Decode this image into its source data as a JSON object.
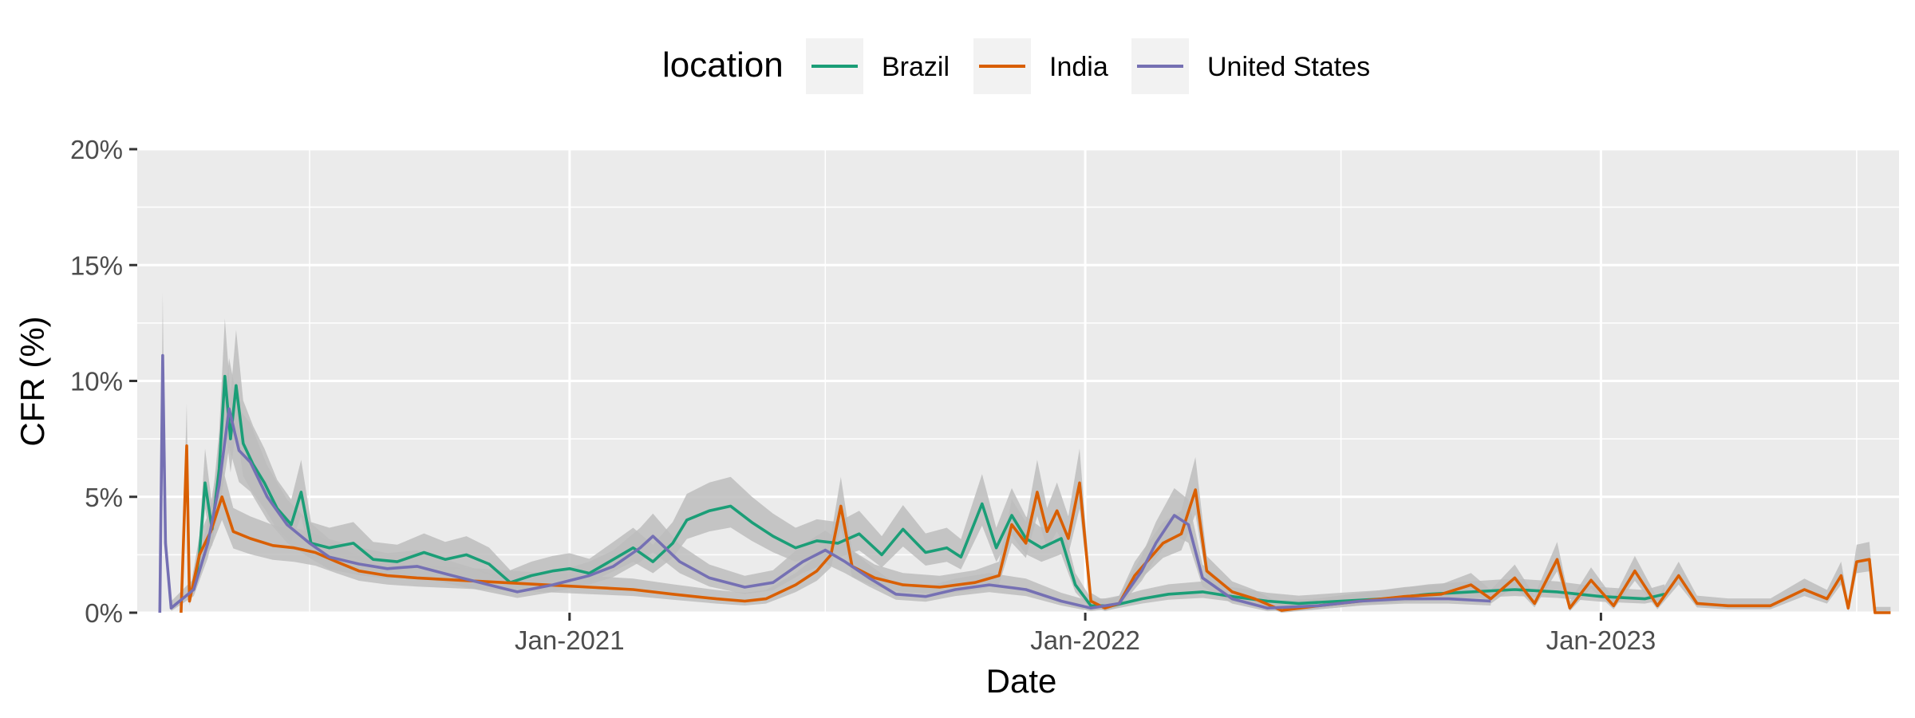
{
  "chart_data": {
    "type": "line",
    "xlabel": "Date",
    "ylabel": "CFR (%)",
    "x_range": [
      "2020-03-01",
      "2023-07-31"
    ],
    "ylim": [
      0,
      20
    ],
    "y_ticks": [
      0,
      5,
      10,
      15,
      20
    ],
    "y_tick_labels": [
      "0%",
      "5%",
      "10%",
      "15%",
      "20%"
    ],
    "x_ticks": [
      "2021-01-01",
      "2022-01-01",
      "2023-01-01"
    ],
    "x_tick_labels": [
      "Jan-2021",
      "Jan-2022",
      "Jan-2023"
    ],
    "x_minor_ticks": [
      "2020-07-01",
      "2021-07-01",
      "2022-07-01",
      "2023-07-01"
    ],
    "grid": true,
    "confidence_band": true,
    "legend": {
      "title": "location",
      "position": "top",
      "entries": [
        "Brazil",
        "India",
        "United States"
      ]
    },
    "series": [
      {
        "name": "Brazil",
        "color": "#1b9e77",
        "points": [
          [
            "2020-04-10",
            1.0
          ],
          [
            "2020-04-14",
            2.5
          ],
          [
            "2020-04-18",
            5.6
          ],
          [
            "2020-04-23",
            3.6
          ],
          [
            "2020-04-28",
            6.2
          ],
          [
            "2020-05-02",
            10.2
          ],
          [
            "2020-05-06",
            7.5
          ],
          [
            "2020-05-10",
            9.8
          ],
          [
            "2020-05-15",
            7.3
          ],
          [
            "2020-05-22",
            6.4
          ],
          [
            "2020-05-30",
            5.6
          ],
          [
            "2020-06-08",
            4.5
          ],
          [
            "2020-06-18",
            3.8
          ],
          [
            "2020-06-25",
            5.2
          ],
          [
            "2020-07-02",
            3.0
          ],
          [
            "2020-07-15",
            2.8
          ],
          [
            "2020-08-01",
            3.0
          ],
          [
            "2020-08-15",
            2.3
          ],
          [
            "2020-09-01",
            2.2
          ],
          [
            "2020-09-20",
            2.6
          ],
          [
            "2020-10-05",
            2.3
          ],
          [
            "2020-10-20",
            2.5
          ],
          [
            "2020-11-05",
            2.1
          ],
          [
            "2020-11-20",
            1.3
          ],
          [
            "2020-12-05",
            1.6
          ],
          [
            "2020-12-20",
            1.8
          ],
          [
            "2021-01-01",
            1.9
          ],
          [
            "2021-01-15",
            1.7
          ],
          [
            "2021-02-01",
            2.3
          ],
          [
            "2021-02-15",
            2.8
          ],
          [
            "2021-03-01",
            2.2
          ],
          [
            "2021-03-15",
            3.0
          ],
          [
            "2021-03-25",
            4.0
          ],
          [
            "2021-04-10",
            4.4
          ],
          [
            "2021-04-25",
            4.6
          ],
          [
            "2021-05-10",
            3.9
          ],
          [
            "2021-05-25",
            3.3
          ],
          [
            "2021-06-10",
            2.8
          ],
          [
            "2021-06-25",
            3.1
          ],
          [
            "2021-07-10",
            3.0
          ],
          [
            "2021-07-25",
            3.4
          ],
          [
            "2021-08-10",
            2.5
          ],
          [
            "2021-08-25",
            3.6
          ],
          [
            "2021-09-10",
            2.6
          ],
          [
            "2021-09-25",
            2.8
          ],
          [
            "2021-10-05",
            2.4
          ],
          [
            "2021-10-20",
            4.7
          ],
          [
            "2021-10-30",
            2.8
          ],
          [
            "2021-11-10",
            4.2
          ],
          [
            "2021-11-20",
            3.2
          ],
          [
            "2021-12-01",
            2.8
          ],
          [
            "2021-12-15",
            3.2
          ],
          [
            "2021-12-25",
            1.2
          ],
          [
            "2022-01-05",
            0.3
          ],
          [
            "2022-01-20",
            0.3
          ],
          [
            "2022-02-10",
            0.6
          ],
          [
            "2022-03-01",
            0.8
          ],
          [
            "2022-03-25",
            0.9
          ],
          [
            "2022-04-15",
            0.7
          ],
          [
            "2022-05-10",
            0.5
          ],
          [
            "2022-06-01",
            0.4
          ],
          [
            "2022-07-01",
            0.5
          ],
          [
            "2022-08-01",
            0.6
          ],
          [
            "2022-09-01",
            0.8
          ],
          [
            "2022-10-01",
            0.9
          ],
          [
            "2022-11-01",
            1.0
          ],
          [
            "2022-12-01",
            0.9
          ],
          [
            "2023-01-01",
            0.7
          ],
          [
            "2023-02-01",
            0.6
          ],
          [
            "2023-02-15",
            0.8
          ]
        ]
      },
      {
        "name": "India",
        "color": "#d95f02",
        "points": [
          [
            "2020-04-01",
            0.0
          ],
          [
            "2020-04-05",
            7.2
          ],
          [
            "2020-04-07",
            0.5
          ],
          [
            "2020-04-14",
            2.5
          ],
          [
            "2020-04-22",
            3.5
          ],
          [
            "2020-04-30",
            5.0
          ],
          [
            "2020-05-08",
            3.5
          ],
          [
            "2020-05-20",
            3.2
          ],
          [
            "2020-06-05",
            2.9
          ],
          [
            "2020-06-20",
            2.8
          ],
          [
            "2020-07-05",
            2.6
          ],
          [
            "2020-07-20",
            2.2
          ],
          [
            "2020-08-05",
            1.8
          ],
          [
            "2020-08-25",
            1.6
          ],
          [
            "2020-09-15",
            1.5
          ],
          [
            "2020-10-15",
            1.4
          ],
          [
            "2020-11-15",
            1.3
          ],
          [
            "2020-12-15",
            1.2
          ],
          [
            "2021-01-15",
            1.1
          ],
          [
            "2021-02-15",
            1.0
          ],
          [
            "2021-03-15",
            0.8
          ],
          [
            "2021-04-15",
            0.6
          ],
          [
            "2021-05-05",
            0.5
          ],
          [
            "2021-05-20",
            0.6
          ],
          [
            "2021-06-10",
            1.2
          ],
          [
            "2021-06-25",
            1.8
          ],
          [
            "2021-07-05",
            2.5
          ],
          [
            "2021-07-12",
            4.6
          ],
          [
            "2021-07-20",
            2.0
          ],
          [
            "2021-08-05",
            1.5
          ],
          [
            "2021-08-25",
            1.2
          ],
          [
            "2021-09-20",
            1.1
          ],
          [
            "2021-10-15",
            1.3
          ],
          [
            "2021-11-01",
            1.6
          ],
          [
            "2021-11-10",
            3.8
          ],
          [
            "2021-11-20",
            3.0
          ],
          [
            "2021-11-28",
            5.2
          ],
          [
            "2021-12-05",
            3.5
          ],
          [
            "2021-12-12",
            4.4
          ],
          [
            "2021-12-20",
            3.2
          ],
          [
            "2021-12-28",
            5.6
          ],
          [
            "2022-01-05",
            0.5
          ],
          [
            "2022-01-15",
            0.2
          ],
          [
            "2022-01-25",
            0.4
          ],
          [
            "2022-02-05",
            1.6
          ],
          [
            "2022-02-15",
            2.3
          ],
          [
            "2022-02-25",
            3.0
          ],
          [
            "2022-03-10",
            3.4
          ],
          [
            "2022-03-20",
            5.3
          ],
          [
            "2022-03-28",
            1.8
          ],
          [
            "2022-04-15",
            0.9
          ],
          [
            "2022-05-01",
            0.6
          ],
          [
            "2022-05-20",
            0.1
          ],
          [
            "2022-06-15",
            0.3
          ],
          [
            "2022-07-15",
            0.5
          ],
          [
            "2022-08-15",
            0.7
          ],
          [
            "2022-09-10",
            0.8
          ],
          [
            "2022-10-01",
            1.2
          ],
          [
            "2022-10-15",
            0.6
          ],
          [
            "2022-11-01",
            1.5
          ],
          [
            "2022-11-15",
            0.4
          ],
          [
            "2022-12-01",
            2.3
          ],
          [
            "2022-12-10",
            0.2
          ],
          [
            "2022-12-25",
            1.4
          ],
          [
            "2023-01-10",
            0.3
          ],
          [
            "2023-01-25",
            1.8
          ],
          [
            "2023-02-10",
            0.3
          ],
          [
            "2023-02-25",
            1.6
          ],
          [
            "2023-03-10",
            0.4
          ],
          [
            "2023-04-01",
            0.3
          ],
          [
            "2023-05-01",
            0.3
          ],
          [
            "2023-05-25",
            1.0
          ],
          [
            "2023-06-10",
            0.6
          ],
          [
            "2023-06-20",
            1.6
          ],
          [
            "2023-06-25",
            0.2
          ],
          [
            "2023-07-01",
            2.2
          ],
          [
            "2023-07-10",
            2.3
          ],
          [
            "2023-07-14",
            0.0
          ],
          [
            "2023-07-25",
            0.0
          ]
        ]
      },
      {
        "name": "United States",
        "color": "#7570b3",
        "points": [
          [
            "2020-03-17",
            0.0
          ],
          [
            "2020-03-19",
            11.1
          ],
          [
            "2020-03-21",
            3.0
          ],
          [
            "2020-03-25",
            0.2
          ],
          [
            "2020-04-10",
            1.0
          ],
          [
            "2020-04-20",
            3.0
          ],
          [
            "2020-04-28",
            5.5
          ],
          [
            "2020-05-05",
            8.8
          ],
          [
            "2020-05-12",
            7.0
          ],
          [
            "2020-05-20",
            6.5
          ],
          [
            "2020-06-01",
            5.0
          ],
          [
            "2020-06-15",
            3.8
          ],
          [
            "2020-07-01",
            3.0
          ],
          [
            "2020-07-15",
            2.4
          ],
          [
            "2020-08-05",
            2.1
          ],
          [
            "2020-08-25",
            1.9
          ],
          [
            "2020-09-15",
            2.0
          ],
          [
            "2020-10-10",
            1.6
          ],
          [
            "2020-11-05",
            1.2
          ],
          [
            "2020-11-25",
            0.9
          ],
          [
            "2020-12-20",
            1.2
          ],
          [
            "2021-01-15",
            1.6
          ],
          [
            "2021-02-01",
            2.0
          ],
          [
            "2021-02-20",
            2.8
          ],
          [
            "2021-03-01",
            3.3
          ],
          [
            "2021-03-20",
            2.2
          ],
          [
            "2021-04-10",
            1.5
          ],
          [
            "2021-05-05",
            1.1
          ],
          [
            "2021-05-25",
            1.3
          ],
          [
            "2021-06-15",
            2.2
          ],
          [
            "2021-07-01",
            2.7
          ],
          [
            "2021-07-15",
            2.2
          ],
          [
            "2021-08-01",
            1.5
          ],
          [
            "2021-08-20",
            0.8
          ],
          [
            "2021-09-10",
            0.7
          ],
          [
            "2021-10-01",
            1.0
          ],
          [
            "2021-10-25",
            1.2
          ],
          [
            "2021-11-20",
            1.0
          ],
          [
            "2021-12-15",
            0.5
          ],
          [
            "2022-01-05",
            0.2
          ],
          [
            "2022-01-25",
            0.4
          ],
          [
            "2022-02-10",
            1.8
          ],
          [
            "2022-02-20",
            3.0
          ],
          [
            "2022-03-05",
            4.2
          ],
          [
            "2022-03-15",
            3.8
          ],
          [
            "2022-03-25",
            1.5
          ],
          [
            "2022-04-15",
            0.6
          ],
          [
            "2022-05-10",
            0.2
          ],
          [
            "2022-06-15",
            0.3
          ],
          [
            "2022-07-15",
            0.5
          ],
          [
            "2022-08-15",
            0.6
          ],
          [
            "2022-09-15",
            0.6
          ],
          [
            "2022-10-15",
            0.5
          ]
        ]
      }
    ]
  }
}
